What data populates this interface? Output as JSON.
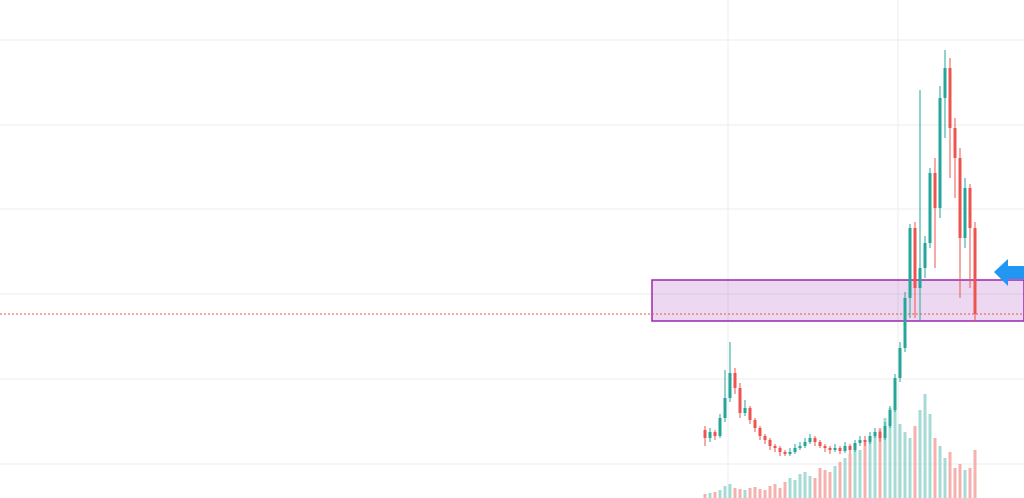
{
  "chart_data": {
    "type": "candlestick",
    "x": [
      705,
      710,
      715,
      720,
      725,
      730,
      735,
      740,
      745,
      750,
      755,
      760,
      765,
      770,
      775,
      780,
      785,
      790,
      795,
      800,
      805,
      810,
      815,
      820,
      825,
      830,
      835,
      840,
      845,
      850,
      855,
      860,
      865,
      870,
      875,
      880,
      885,
      890,
      895,
      900,
      905,
      910,
      915,
      920,
      925,
      930,
      935,
      940,
      945,
      950,
      955,
      960,
      965,
      970,
      975
    ],
    "open": [
      68,
      60,
      66,
      62,
      80,
      100,
      125,
      110,
      85,
      90,
      78,
      70,
      62,
      58,
      52,
      50,
      46,
      44,
      46,
      50,
      52,
      56,
      60,
      56,
      52,
      50,
      48,
      50,
      47,
      52,
      48,
      55,
      58,
      56,
      62,
      66,
      60,
      72,
      88,
      120,
      150,
      200,
      270,
      210,
      230,
      255,
      325,
      290,
      400,
      430,
      370,
      340,
      260,
      310,
      270
    ],
    "high": [
      72,
      70,
      68,
      84,
      128,
      156,
      130,
      115,
      98,
      92,
      80,
      72,
      64,
      60,
      54,
      52,
      48,
      50,
      54,
      56,
      60,
      64,
      62,
      58,
      54,
      52,
      54,
      52,
      56,
      54,
      58,
      62,
      62,
      66,
      70,
      68,
      76,
      92,
      124,
      156,
      206,
      274,
      276,
      408,
      262,
      330,
      340,
      412,
      448,
      440,
      380,
      350,
      320,
      314,
      276
    ],
    "low": [
      52,
      56,
      58,
      60,
      76,
      96,
      104,
      80,
      82,
      74,
      66,
      58,
      54,
      48,
      46,
      42,
      42,
      42,
      44,
      48,
      50,
      54,
      52,
      50,
      46,
      44,
      46,
      44,
      45,
      44,
      46,
      52,
      52,
      54,
      60,
      56,
      58,
      70,
      86,
      116,
      146,
      180,
      180,
      178,
      220,
      250,
      230,
      280,
      360,
      320,
      300,
      200,
      250,
      210,
      176
    ],
    "close": [
      60,
      66,
      62,
      80,
      100,
      125,
      110,
      85,
      90,
      78,
      70,
      62,
      58,
      52,
      50,
      46,
      44,
      46,
      50,
      52,
      56,
      60,
      56,
      52,
      50,
      48,
      50,
      47,
      52,
      48,
      55,
      58,
      56,
      62,
      66,
      60,
      72,
      88,
      120,
      150,
      200,
      270,
      210,
      230,
      255,
      325,
      290,
      400,
      430,
      370,
      340,
      260,
      310,
      270,
      184
    ],
    "volume": [
      4,
      5,
      6,
      8,
      12,
      14,
      10,
      9,
      8,
      10,
      11,
      9,
      8,
      12,
      14,
      10,
      16,
      20,
      18,
      24,
      26,
      22,
      20,
      30,
      28,
      26,
      32,
      36,
      40,
      44,
      50,
      48,
      56,
      60,
      64,
      70,
      80,
      90,
      98,
      74,
      66,
      60,
      72,
      88,
      104,
      84,
      60,
      52,
      40,
      46,
      30,
      34,
      28,
      30,
      48
    ],
    "up_color": "#26a69a",
    "down_color": "#ef5350",
    "volume_up_color": "#a6dbd5",
    "volume_down_color": "#f6b0ae",
    "xlim": [
      0,
      1024
    ],
    "xticks": [
      728,
      898
    ],
    "ylim": [
      0,
      498
    ],
    "yticks": [
      34,
      119,
      204,
      289,
      373,
      458
    ],
    "y2lim": [
      0,
      498
    ],
    "grid": true,
    "zone": {
      "from": 177,
      "to": 218,
      "color": "#9c27b0"
    },
    "price_line": {
      "value": 184,
      "color": "#ef5350"
    }
  }
}
